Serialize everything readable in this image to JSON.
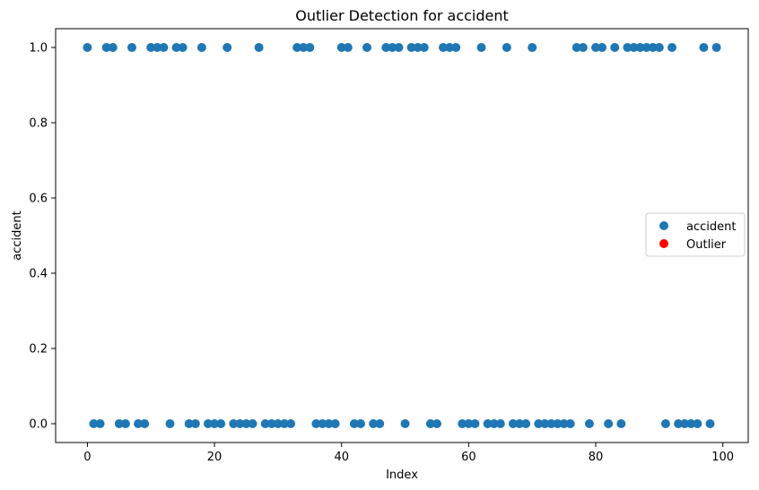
{
  "chart_data": {
    "type": "scatter",
    "title": "Outlier Detection for accident",
    "xlabel": "Index",
    "ylabel": "accident",
    "xlim": [
      -5,
      104
    ],
    "ylim": [
      -0.05,
      1.05
    ],
    "xticks": [
      0,
      20,
      40,
      60,
      80,
      100
    ],
    "yticks": [
      0.0,
      0.2,
      0.4,
      0.6,
      0.8,
      1.0
    ],
    "xtick_labels": [
      "0",
      "20",
      "40",
      "60",
      "80",
      "100"
    ],
    "ytick_labels": [
      "0.0",
      "0.2",
      "0.4",
      "0.6",
      "0.8",
      "1.0"
    ],
    "grid": false,
    "legend_position": "center-right",
    "series": [
      {
        "name": "accident",
        "color": "#1f77b4",
        "x": [
          0,
          1,
          2,
          3,
          4,
          5,
          6,
          7,
          8,
          9,
          10,
          11,
          12,
          13,
          14,
          15,
          16,
          17,
          18,
          19,
          20,
          21,
          22,
          23,
          24,
          25,
          26,
          27,
          28,
          29,
          30,
          31,
          32,
          33,
          34,
          35,
          36,
          37,
          38,
          39,
          40,
          41,
          42,
          43,
          44,
          45,
          46,
          47,
          48,
          49,
          50,
          51,
          52,
          53,
          54,
          55,
          56,
          57,
          58,
          59,
          60,
          61,
          62,
          63,
          64,
          65,
          66,
          67,
          68,
          69,
          70,
          71,
          72,
          73,
          74,
          75,
          76,
          77,
          78,
          79,
          80,
          81,
          82,
          83,
          84,
          85,
          86,
          87,
          88,
          89,
          90,
          91,
          92,
          93,
          94,
          95,
          96,
          97,
          98,
          99
        ],
        "y": [
          1,
          0,
          0,
          1,
          1,
          0,
          0,
          1,
          0,
          0,
          1,
          1,
          1,
          0,
          1,
          1,
          0,
          0,
          1,
          0,
          0,
          0,
          1,
          0,
          0,
          0,
          0,
          1,
          0,
          0,
          0,
          0,
          0,
          1,
          1,
          1,
          0,
          0,
          0,
          0,
          1,
          1,
          0,
          0,
          1,
          0,
          0,
          1,
          1,
          1,
          0,
          1,
          1,
          1,
          0,
          0,
          1,
          1,
          1,
          0,
          0,
          0,
          1,
          0,
          0,
          0,
          1,
          0,
          0,
          0,
          1,
          0,
          0,
          0,
          0,
          0,
          0,
          1,
          1,
          0,
          1,
          1,
          0,
          1,
          0,
          1,
          1,
          1,
          1,
          1,
          1,
          0,
          1,
          0,
          0,
          0,
          0,
          1,
          0,
          1
        ]
      },
      {
        "name": "Outlier",
        "color": "#ff0000",
        "x": [],
        "y": []
      }
    ]
  }
}
